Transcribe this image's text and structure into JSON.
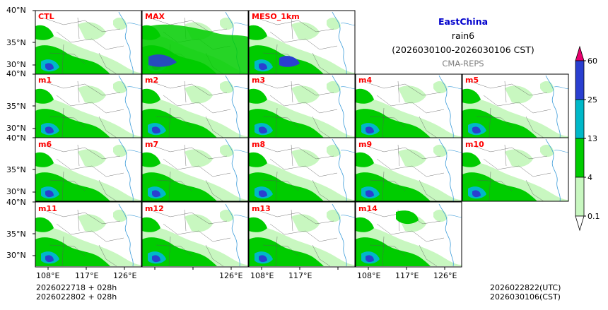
{
  "header": {
    "region": "EastChina",
    "variable": "rain6",
    "period": "(2026030100-2026030106 CST)",
    "model": "CMA-REPS"
  },
  "colors": {
    "region_title": "#0000cc",
    "panel_label": "#ff0000",
    "model_label": "#7f7f7f",
    "coast": "#3a9bd9",
    "boundary": "#555555",
    "levels": [
      "#ffffff",
      "#c8f7c0",
      "#00cc00",
      "#00b8c8",
      "#2a3fd0",
      "#e8006e"
    ]
  },
  "panels": {
    "row0": [
      "CTL",
      "MAX",
      "MESO_1km"
    ],
    "row1": [
      "m1",
      "m2",
      "m3",
      "m4",
      "m5"
    ],
    "row2": [
      "m6",
      "m7",
      "m8",
      "m9",
      "m10"
    ],
    "row3": [
      "m11",
      "m12",
      "m13",
      "m14"
    ]
  },
  "axes": {
    "lat_labels": [
      "40°N",
      "35°N",
      "30°N"
    ],
    "lon_labels": [
      "108°E",
      "117°E",
      "126°E"
    ]
  },
  "colorbar": {
    "ticks": [
      "60",
      "25",
      "13",
      "4",
      "0.1"
    ]
  },
  "footer": {
    "init_utc": "2026022718  +  028h",
    "init_cst": "2026022802  +  028h",
    "valid_utc": "2026022822(UTC)",
    "valid_cst": "2026030106(CST)"
  }
}
